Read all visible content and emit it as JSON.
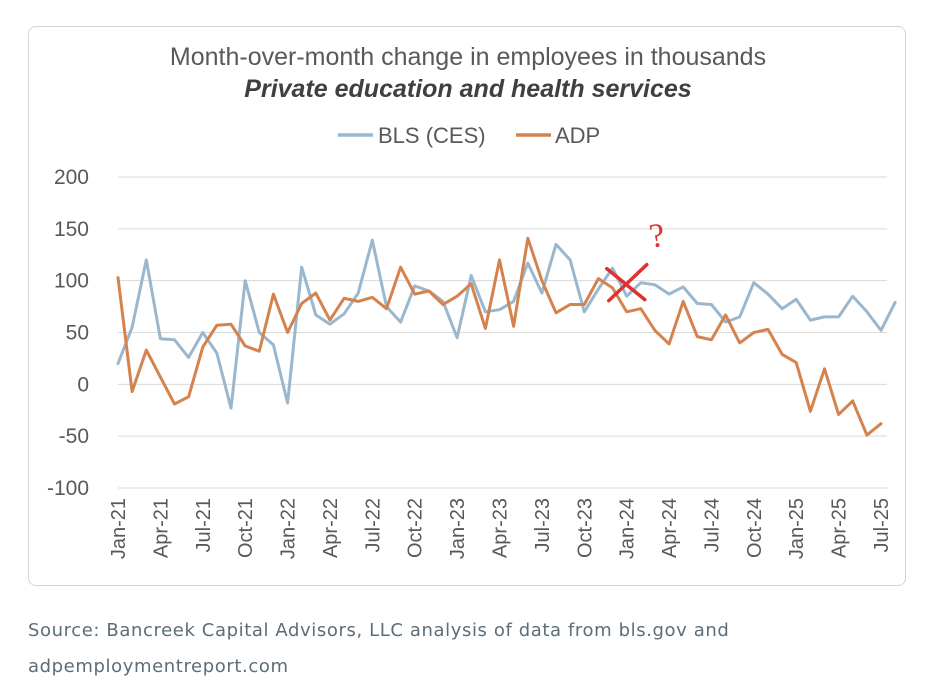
{
  "chart_data": {
    "type": "line",
    "title": "Month-over-month change in employees in thousands",
    "subtitle": "Private education and health services",
    "xlabel": "",
    "ylabel": "",
    "ylim": [
      -100,
      200
    ],
    "yticks": [
      -100,
      -50,
      0,
      50,
      100,
      150,
      200
    ],
    "grid": true,
    "legend": "top-center",
    "x_tick_labels": [
      "Jan-21",
      "Apr-21",
      "Jul-21",
      "Oct-21",
      "Jan-22",
      "Apr-22",
      "Jul-22",
      "Oct-22",
      "Jan-23",
      "Apr-23",
      "Jul-23",
      "Oct-23",
      "Jan-24",
      "Apr-24",
      "Jul-24",
      "Oct-24",
      "Jan-25",
      "Apr-25",
      "Jul-25"
    ],
    "series": [
      {
        "name": "BLS (CES)",
        "color": "#9ab7cd",
        "values": [
          20,
          55,
          120,
          44,
          43,
          26,
          50,
          30,
          -23,
          100,
          50,
          38,
          -18,
          113,
          67,
          58,
          68,
          88,
          139,
          75,
          60,
          95,
          90,
          80,
          45,
          105,
          70,
          72,
          80,
          117,
          88,
          135,
          120,
          70,
          92,
          112,
          85,
          98,
          96,
          87,
          94,
          78,
          77,
          60,
          65,
          98,
          87,
          73,
          82,
          62,
          65,
          65,
          85,
          70,
          52,
          79
        ]
      },
      {
        "name": "ADP",
        "color": "#d4824e",
        "values": [
          103,
          -7,
          33,
          7,
          -19,
          -12,
          36,
          57,
          58,
          37,
          32,
          87,
          50,
          78,
          88,
          62,
          83,
          80,
          84,
          73,
          113,
          87,
          90,
          77,
          85,
          97,
          54,
          120,
          56,
          141,
          100,
          69,
          77,
          77,
          102,
          93,
          70,
          73,
          52,
          39,
          80,
          46,
          43,
          67,
          40,
          50,
          53,
          29,
          21,
          -26,
          15,
          -29,
          -16,
          -49,
          -38
        ]
      }
    ],
    "annotations": {
      "cross_mark": "×",
      "question_mark": "?",
      "cross_at": {
        "series": "BLS (CES)",
        "month_index": 37,
        "value": 100
      },
      "question_near": {
        "month_index": 39,
        "value": 155
      }
    }
  },
  "footer": {
    "source_line1": "Source: Bancreek Capital Advisors, LLC analysis of data from bls.gov and",
    "source_line2": "adpemploymentreport.com"
  }
}
